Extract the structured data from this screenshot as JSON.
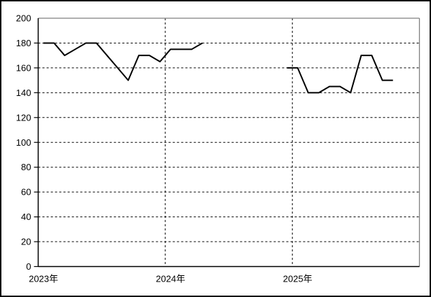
{
  "chart_data": {
    "type": "line",
    "title": "",
    "legend": "none",
    "grid": "dashed",
    "n_categories": 36,
    "categories": [
      "2023-01",
      "2023-02",
      "2023-03",
      "2023-04",
      "2023-05",
      "2023-06",
      "2023-07",
      "2023-08",
      "2023-09",
      "2023-10",
      "2023-11",
      "2023-12",
      "2024-01",
      "2024-02",
      "2024-03",
      "2024-04",
      "2024-05",
      "2024-06",
      "2024-07",
      "2024-08",
      "2024-09",
      "2024-10",
      "2024-11",
      "2024-12",
      "2025-01",
      "2025-02",
      "2025-03",
      "2025-04",
      "2025-05",
      "2025-06",
      "2025-07",
      "2025-08",
      "2025-09",
      "2025-10",
      "2025-11",
      "2025-12"
    ],
    "x_tick_labels": [
      {
        "label": "2023年",
        "month_index": 0
      },
      {
        "label": "2024年",
        "month_index": 12
      },
      {
        "label": "2025年",
        "month_index": 24
      }
    ],
    "x_gridline_boundaries": [
      12,
      24
    ],
    "ylim": [
      0,
      200
    ],
    "y_tick_step": 20,
    "y_tick_labels": [
      "0",
      "20",
      "40",
      "60",
      "80",
      "100",
      "120",
      "140",
      "160",
      "180",
      "200"
    ],
    "y_ticks_with_mark": [
      0,
      20,
      40,
      60,
      80,
      100,
      120,
      140,
      160,
      180
    ],
    "series": [
      {
        "name": "series-1",
        "values": [
          180,
          180,
          170,
          175,
          180,
          180,
          170,
          160,
          150,
          170,
          170,
          165,
          175,
          175,
          175,
          180,
          null,
          null,
          null,
          null,
          null,
          null,
          null,
          160,
          160,
          140,
          140,
          145,
          145,
          140,
          170,
          170,
          150,
          150,
          null,
          null
        ]
      }
    ],
    "colors": {
      "line": "#000000",
      "grid": "#000000",
      "axis": "#000000",
      "frame": "#808080",
      "background": "#ffffff",
      "border": "#000000",
      "text": "#000000"
    }
  }
}
